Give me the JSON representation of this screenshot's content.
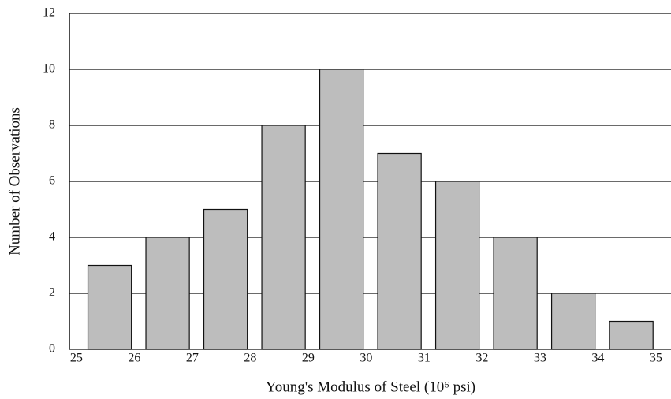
{
  "chart_data": {
    "type": "histogram",
    "x_label": "Young's Modulus of Steel (10⁶ psi)",
    "y_label": "Number of Observations",
    "bins": [
      25,
      26,
      27,
      28,
      29,
      30,
      31,
      32,
      33,
      34,
      35
    ],
    "values": [
      3,
      4,
      5,
      8,
      10,
      7,
      6,
      4,
      2,
      1
    ],
    "color": "#bdbdbd",
    "xlim": [
      24.88,
      35.26
    ],
    "xticks": [
      25,
      26,
      27,
      28,
      29,
      30,
      31,
      32,
      33,
      34,
      35
    ],
    "ylim": [
      0,
      12
    ],
    "yticks": [
      0,
      2,
      4,
      6,
      8,
      10,
      12
    ],
    "grid": true
  }
}
